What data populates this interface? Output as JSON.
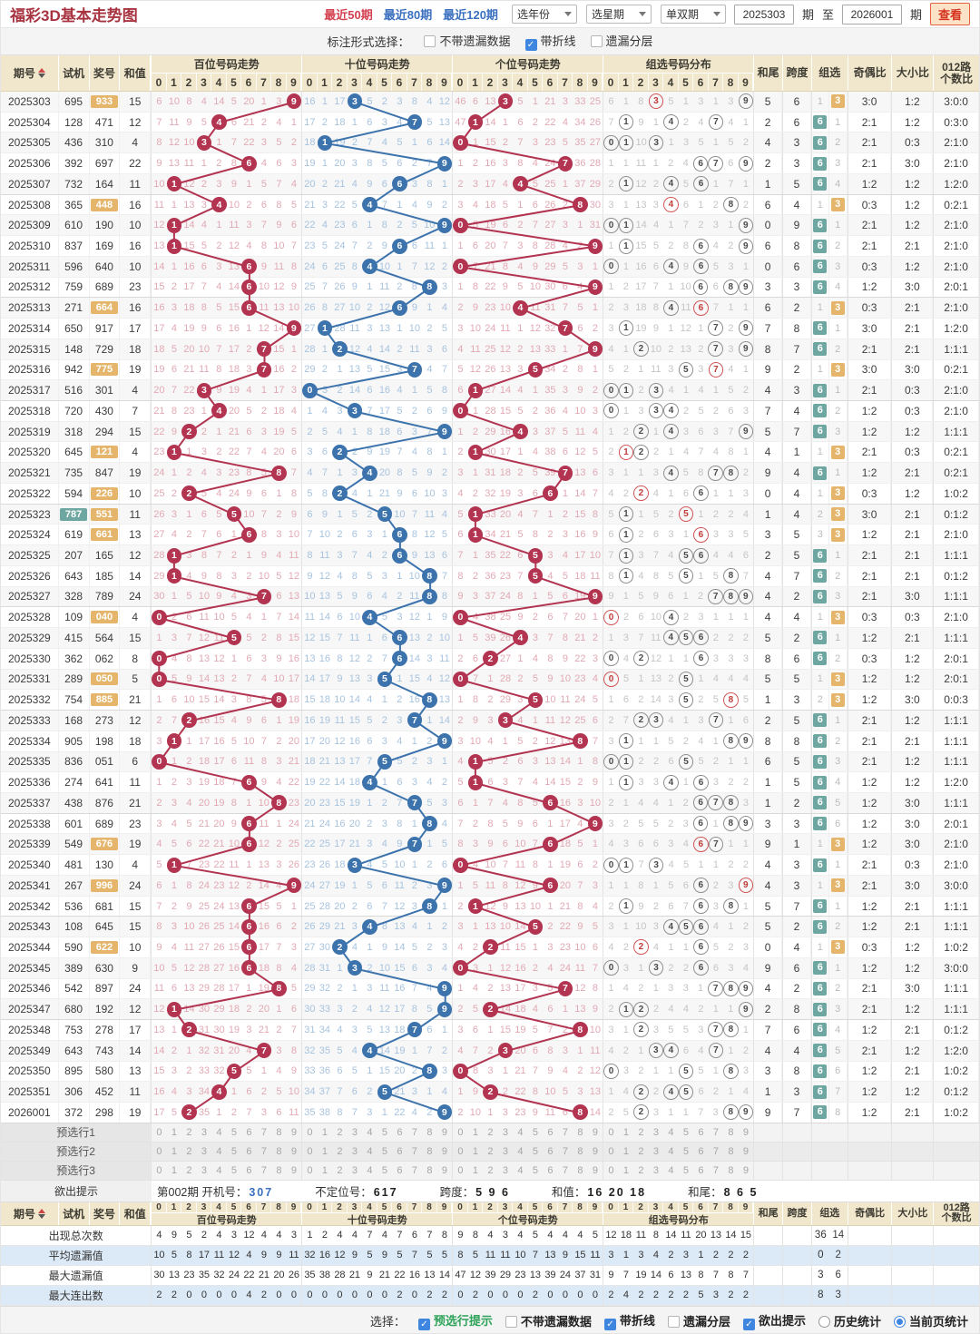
{
  "titlebar": {
    "title": "福彩3D基本走势图",
    "range_tabs": [
      {
        "label": "最近50期",
        "active": true
      },
      {
        "label": "最近80期",
        "active": false
      },
      {
        "label": "最近120期",
        "active": false
      }
    ],
    "selects": [
      "选年份",
      "选星期",
      "单双期"
    ],
    "period_from": "2025303",
    "period_to": "2026001",
    "unit_label": "期",
    "to_label": "至",
    "view_button": "查看"
  },
  "controls": {
    "label": "标注形式选择：",
    "options": [
      {
        "label": "不带遗漏数据",
        "checked": false
      },
      {
        "label": "带折线",
        "checked": true
      },
      {
        "label": "遗漏分层",
        "checked": false
      }
    ]
  },
  "table": {
    "left_headers": [
      "期号",
      "试机",
      "奖号",
      "和值"
    ],
    "group_headers": [
      "百位号码走势",
      "十位号码走势",
      "个位号码走势",
      "组选号码分布"
    ],
    "digit_headers": [
      "0",
      "1",
      "2",
      "3",
      "4",
      "5",
      "6",
      "7",
      "8",
      "9"
    ],
    "right_headers": [
      "和尾",
      "跨度",
      "组选",
      "奇偶比",
      "大小比",
      "012路个数比"
    ],
    "initial_omissions": {
      "bai": [
        6,
        10,
        8,
        4,
        14,
        5,
        20,
        1,
        3,
        null
      ],
      "shi": [
        16,
        1,
        17,
        null,
        5,
        2,
        3,
        8,
        4,
        12
      ],
      "ge": [
        46,
        6,
        13,
        null,
        5,
        1,
        21,
        3,
        33,
        25
      ],
      "zu": [
        6,
        1,
        8,
        null,
        5,
        1,
        3,
        1,
        3,
        null
      ]
    },
    "rows": [
      {
        "period": "2025303",
        "shiji": "695",
        "prize": "933"
      },
      {
        "period": "2025304",
        "shiji": "128",
        "prize": "471"
      },
      {
        "period": "2025305",
        "shiji": "436",
        "prize": "310"
      },
      {
        "period": "2025306",
        "shiji": "392",
        "prize": "697"
      },
      {
        "period": "2025307",
        "shiji": "732",
        "prize": "164"
      },
      {
        "period": "2025308",
        "shiji": "365",
        "prize": "448"
      },
      {
        "period": "2025309",
        "shiji": "610",
        "prize": "190"
      },
      {
        "period": "2025310",
        "shiji": "837",
        "prize": "169"
      },
      {
        "period": "2025311",
        "shiji": "596",
        "prize": "640"
      },
      {
        "period": "2025312",
        "shiji": "759",
        "prize": "689"
      },
      {
        "period": "2025313",
        "shiji": "271",
        "prize": "664"
      },
      {
        "period": "2025314",
        "shiji": "650",
        "prize": "917"
      },
      {
        "period": "2025315",
        "shiji": "148",
        "prize": "729"
      },
      {
        "period": "2025316",
        "shiji": "942",
        "prize": "775"
      },
      {
        "period": "2025317",
        "shiji": "516",
        "prize": "301"
      },
      {
        "period": "2025318",
        "shiji": "720",
        "prize": "430"
      },
      {
        "period": "2025319",
        "shiji": "318",
        "prize": "294"
      },
      {
        "period": "2025320",
        "shiji": "645",
        "prize": "121"
      },
      {
        "period": "2025321",
        "shiji": "735",
        "prize": "847"
      },
      {
        "period": "2025322",
        "shiji": "594",
        "prize": "226"
      },
      {
        "period": "2025323",
        "shiji": "787",
        "prize": "551"
      },
      {
        "period": "2025324",
        "shiji": "619",
        "prize": "661"
      },
      {
        "period": "2025325",
        "shiji": "207",
        "prize": "165"
      },
      {
        "period": "2025326",
        "shiji": "643",
        "prize": "185"
      },
      {
        "period": "2025327",
        "shiji": "328",
        "prize": "789"
      },
      {
        "period": "2025328",
        "shiji": "109",
        "prize": "040"
      },
      {
        "period": "2025329",
        "shiji": "415",
        "prize": "564"
      },
      {
        "period": "2025330",
        "shiji": "362",
        "prize": "062"
      },
      {
        "period": "2025331",
        "shiji": "289",
        "prize": "050"
      },
      {
        "period": "2025332",
        "shiji": "754",
        "prize": "885"
      },
      {
        "period": "2025333",
        "shiji": "168",
        "prize": "273"
      },
      {
        "period": "2025334",
        "shiji": "905",
        "prize": "198"
      },
      {
        "period": "2025335",
        "shiji": "836",
        "prize": "051"
      },
      {
        "period": "2025336",
        "shiji": "274",
        "prize": "641"
      },
      {
        "period": "2025337",
        "shiji": "438",
        "prize": "876"
      },
      {
        "period": "2025338",
        "shiji": "601",
        "prize": "689"
      },
      {
        "period": "2025339",
        "shiji": "549",
        "prize": "676"
      },
      {
        "period": "2025340",
        "shiji": "481",
        "prize": "130"
      },
      {
        "period": "2025341",
        "shiji": "267",
        "prize": "996"
      },
      {
        "period": "2025342",
        "shiji": "536",
        "prize": "681"
      },
      {
        "period": "2025343",
        "shiji": "108",
        "prize": "645"
      },
      {
        "period": "2025344",
        "shiji": "590",
        "prize": "622"
      },
      {
        "period": "2025345",
        "shiji": "389",
        "prize": "630"
      },
      {
        "period": "2025346",
        "shiji": "542",
        "prize": "897"
      },
      {
        "period": "2025347",
        "shiji": "680",
        "prize": "192"
      },
      {
        "period": "2025348",
        "shiji": "753",
        "prize": "278"
      },
      {
        "period": "2025349",
        "shiji": "643",
        "prize": "743"
      },
      {
        "period": "2025350",
        "shiji": "895",
        "prize": "580"
      },
      {
        "period": "2025351",
        "shiji": "306",
        "prize": "452"
      },
      {
        "period": "2026001",
        "shiji": "372",
        "prize": "298"
      }
    ]
  },
  "preselect_rows": [
    "预选行1",
    "预选行2",
    "预选行3"
  ],
  "hint_row": {
    "label": "欲出提示",
    "items": [
      {
        "k": "第002期 开机号：",
        "v": "307",
        "blue": true
      },
      {
        "k": "不定位号：",
        "v": "617",
        "blue": false
      },
      {
        "k": "跨度：",
        "v": "5 9 6",
        "blue": false
      },
      {
        "k": "和值：",
        "v": "16 20 18",
        "blue": false
      },
      {
        "k": "和尾：",
        "v": "8 6 5",
        "blue": false
      }
    ]
  },
  "stats": {
    "rows": [
      {
        "label": "出现总次数",
        "bai": [
          4,
          9,
          5,
          2,
          4,
          3,
          12,
          4,
          4,
          3
        ],
        "shi": [
          1,
          2,
          4,
          4,
          7,
          4,
          7,
          6,
          7,
          8
        ],
        "ge": [
          9,
          8,
          4,
          3,
          4,
          5,
          4,
          4,
          4,
          5
        ],
        "zu": [
          12,
          18,
          11,
          8,
          14,
          11,
          20,
          13,
          14,
          15
        ],
        "zucols": [
          "36",
          "14"
        ]
      },
      {
        "label": "平均遗漏值",
        "bai": [
          10,
          5,
          8,
          17,
          11,
          12,
          4,
          9,
          9,
          11
        ],
        "shi": [
          32,
          16,
          12,
          9,
          5,
          9,
          5,
          7,
          5,
          5
        ],
        "ge": [
          8,
          5,
          11,
          11,
          10,
          7,
          13,
          9,
          15,
          11
        ],
        "zu": [
          3,
          1,
          3,
          4,
          2,
          3,
          1,
          2,
          2,
          2
        ],
        "zucols": [
          "0",
          "2"
        ]
      },
      {
        "label": "最大遗漏值",
        "bai": [
          30,
          13,
          23,
          35,
          32,
          24,
          22,
          21,
          20,
          26
        ],
        "shi": [
          35,
          38,
          28,
          21,
          9,
          21,
          22,
          16,
          13,
          14
        ],
        "ge": [
          47,
          12,
          39,
          29,
          23,
          13,
          39,
          24,
          37,
          31
        ],
        "zu": [
          9,
          7,
          19,
          14,
          6,
          13,
          8,
          7,
          8,
          7
        ],
        "zucols": [
          "3",
          "6"
        ]
      },
      {
        "label": "最大连出数",
        "bai": [
          2,
          2,
          0,
          0,
          0,
          0,
          4,
          2,
          0,
          0
        ],
        "shi": [
          0,
          0,
          0,
          0,
          0,
          0,
          2,
          0,
          2,
          2
        ],
        "ge": [
          0,
          2,
          0,
          0,
          0,
          2,
          0,
          0,
          0,
          0
        ],
        "zu": [
          2,
          4,
          2,
          2,
          2,
          2,
          5,
          3,
          2,
          2
        ],
        "zucols": [
          "8",
          "3"
        ]
      }
    ]
  },
  "footer": {
    "label": "选择：",
    "checkboxes": [
      {
        "label": "预选行提示",
        "checked": true,
        "green": true
      },
      {
        "label": "不带遗漏数据",
        "checked": false,
        "green": false
      },
      {
        "label": "带折线",
        "checked": true,
        "green": false
      },
      {
        "label": "遗漏分层",
        "checked": false,
        "green": false
      },
      {
        "label": "欲出提示",
        "checked": true,
        "green": false
      }
    ],
    "radios": [
      {
        "label": "历史统计",
        "checked": false
      },
      {
        "label": "当前页统计",
        "checked": true
      }
    ]
  },
  "colors": {
    "title_red": "#a83340",
    "active_tab_red": "#d3404f",
    "link_blue": "#3a6fbf",
    "header_tan": "#f1e7cd",
    "bai_line": "#b23450",
    "shi_line": "#3c73ac",
    "ge_line": "#b23450",
    "bai_miss": "#e2a9b4",
    "shi_miss": "#a7c3df",
    "ge_miss": "#e2a9b4",
    "zu_miss": "#c5c5c5",
    "tan_tag": "#e4b56b",
    "teal_tag": "#6ea7a1",
    "daxiao_red": "#a33048",
    "stats_blue_row": "#dce9f6",
    "checkbox_blue": "#3e86e0",
    "footer_green": "#2fa35a"
  }
}
